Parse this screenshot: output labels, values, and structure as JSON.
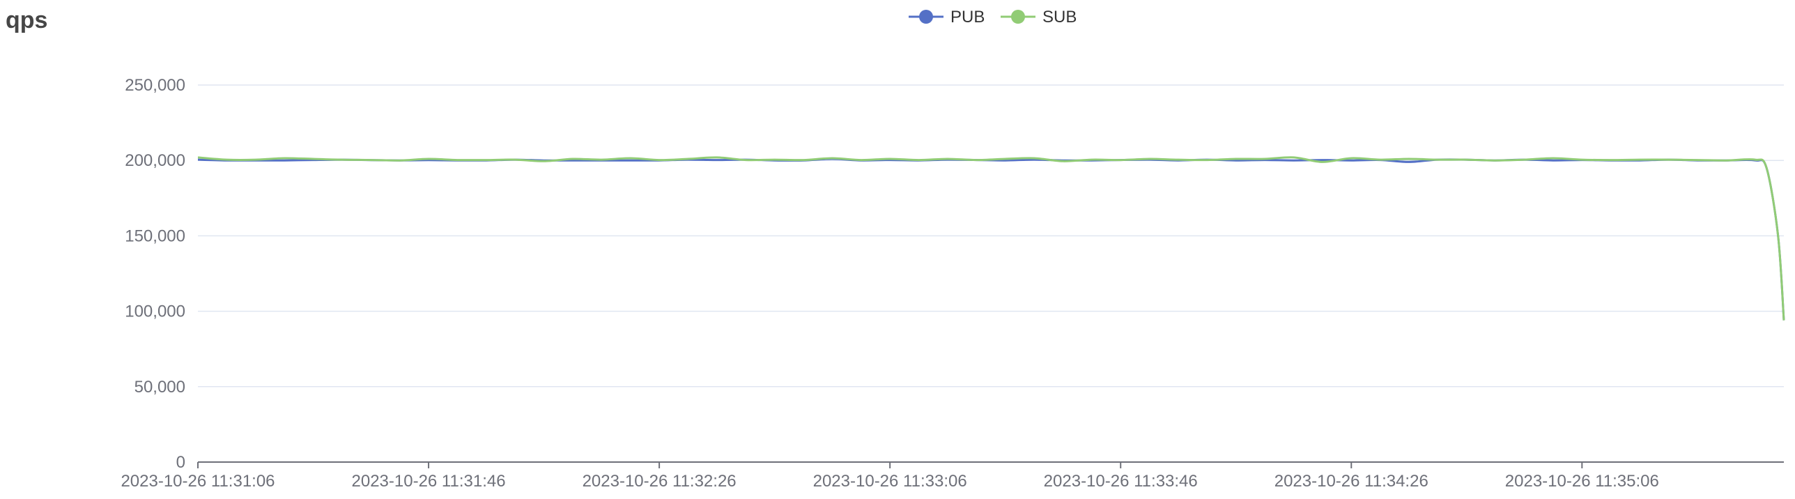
{
  "chart_data": {
    "type": "line",
    "title": "qps",
    "xlabel": "",
    "ylabel": "",
    "ylim": [
      0,
      250000
    ],
    "y_ticks": [
      0,
      50000,
      100000,
      150000,
      200000,
      250000
    ],
    "y_tick_labels": [
      "0",
      "50,000",
      "100,000",
      "150,000",
      "200,000",
      "250,000"
    ],
    "x_tick_labels": [
      "2023-10-26 11:31:06",
      "2023-10-26 11:31:46",
      "2023-10-26 11:32:26",
      "2023-10-26 11:33:06",
      "2023-10-26 11:33:46",
      "2023-10-26 11:34:26",
      "2023-10-26 11:35:06"
    ],
    "x_tick_seconds": [
      0,
      40,
      80,
      120,
      160,
      200,
      240
    ],
    "xlim_seconds": [
      0,
      275
    ],
    "grid": true,
    "legend": "top-center",
    "series": [
      {
        "name": "PUB",
        "color": "#5470c6",
        "x": [
          0,
          5,
          10,
          15,
          20,
          25,
          30,
          35,
          40,
          45,
          50,
          55,
          60,
          65,
          70,
          75,
          80,
          85,
          90,
          95,
          100,
          105,
          110,
          115,
          120,
          125,
          130,
          135,
          140,
          145,
          150,
          155,
          160,
          165,
          170,
          175,
          180,
          185,
          190,
          195,
          200,
          205,
          210,
          215,
          220,
          225,
          230,
          235,
          240,
          245,
          250,
          255,
          260,
          265,
          270,
          272,
          274,
          275
        ],
        "values": [
          200500,
          200000,
          200000,
          200000,
          200300,
          200500,
          200200,
          200000,
          200200,
          200000,
          200000,
          200500,
          200000,
          200000,
          200000,
          200000,
          200000,
          200500,
          200300,
          200500,
          200000,
          200000,
          201000,
          200000,
          200300,
          200000,
          200500,
          200300,
          200000,
          200500,
          200000,
          200000,
          200300,
          200500,
          200000,
          200500,
          200000,
          200300,
          200000,
          200300,
          200000,
          200300,
          199000,
          200500,
          200500,
          200000,
          200500,
          200000,
          200300,
          200000,
          200000,
          200500,
          200000,
          200000,
          200000,
          195000,
          150000,
          94000
        ]
      },
      {
        "name": "SUB",
        "color": "#91cc75",
        "x": [
          0,
          5,
          10,
          15,
          20,
          25,
          30,
          35,
          40,
          45,
          50,
          55,
          60,
          65,
          70,
          75,
          80,
          85,
          90,
          95,
          100,
          105,
          110,
          115,
          120,
          125,
          130,
          135,
          140,
          145,
          150,
          155,
          160,
          165,
          170,
          175,
          180,
          185,
          190,
          195,
          200,
          205,
          210,
          215,
          220,
          225,
          230,
          235,
          240,
          245,
          250,
          255,
          260,
          265,
          270,
          272,
          274,
          275
        ],
        "values": [
          202000,
          200500,
          200500,
          201500,
          201000,
          200500,
          200300,
          200000,
          201000,
          200300,
          200300,
          200500,
          199500,
          201000,
          200500,
          201500,
          200300,
          201000,
          202000,
          200300,
          200500,
          200300,
          201500,
          200300,
          201000,
          200300,
          201000,
          200300,
          201000,
          201500,
          199500,
          200500,
          200300,
          201000,
          200500,
          200300,
          201000,
          201000,
          202000,
          199000,
          201500,
          200500,
          201000,
          200500,
          200500,
          200000,
          200500,
          201500,
          200500,
          200300,
          200500,
          200500,
          200300,
          200000,
          200500,
          195000,
          150000,
          94000
        ]
      }
    ]
  }
}
